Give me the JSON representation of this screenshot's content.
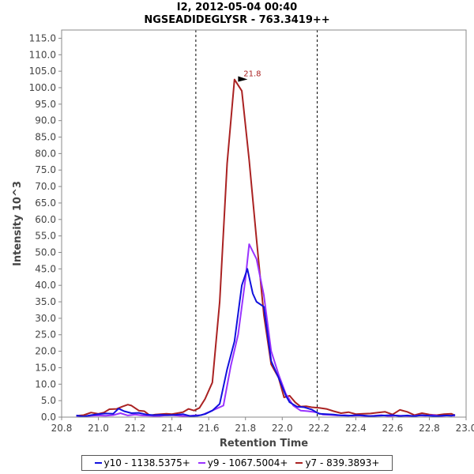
{
  "chart_data": {
    "type": "line",
    "title": "I2, 2012-05-04 00:40",
    "subtitle": "NGSEADIDEGLYSR - 763.3419++",
    "xlabel": "Retention Time",
    "ylabel": "Intensity 10^3",
    "xlim": [
      20.8,
      23.0
    ],
    "ylim": [
      0,
      117.5
    ],
    "x_ticks": [
      "20.8",
      "21.0",
      "21.2",
      "21.4",
      "21.6",
      "21.8",
      "22.0",
      "22.2",
      "22.4",
      "22.6",
      "22.8",
      "23.0"
    ],
    "y_ticks": [
      "0.0",
      "5.0",
      "10.0",
      "15.0",
      "20.0",
      "25.0",
      "30.0",
      "35.0",
      "40.0",
      "45.0",
      "50.0",
      "55.0",
      "60.0",
      "65.0",
      "70.0",
      "75.0",
      "80.0",
      "85.0",
      "90.0",
      "95.0",
      "100.0",
      "105.0",
      "110.0",
      "115.0"
    ],
    "vlines": [
      21.53,
      22.19
    ],
    "peak_annotation": {
      "label": "21.8",
      "x": 21.82,
      "y": 102.5
    },
    "legend_position": "bottom",
    "grid": false,
    "series": [
      {
        "name": "y10 - 1138.5375+",
        "color": "#1111dd",
        "x": [
          20.88,
          20.92,
          20.96,
          21.0,
          21.04,
          21.08,
          21.11,
          21.14,
          21.18,
          21.22,
          21.26,
          21.3,
          21.34,
          21.38,
          21.42,
          21.46,
          21.5,
          21.54,
          21.58,
          21.62,
          21.66,
          21.7,
          21.74,
          21.78,
          21.81,
          21.84,
          21.86,
          21.9,
          21.94,
          21.98,
          22.02,
          22.04,
          22.08,
          22.12,
          22.16,
          22.2,
          22.24,
          22.28,
          22.32,
          22.36,
          22.4,
          22.44,
          22.48,
          22.52,
          22.56,
          22.6,
          22.64,
          22.68,
          22.72,
          22.76,
          22.8,
          22.84,
          22.88,
          22.92,
          22.94
        ],
        "y": [
          0.5,
          0.2,
          0.6,
          0.9,
          1.1,
          1.0,
          2.6,
          1.8,
          1.2,
          1.3,
          0.8,
          0.6,
          0.7,
          0.6,
          0.7,
          0.9,
          0.3,
          0.4,
          0.9,
          2.0,
          4.0,
          14.5,
          23.0,
          40.0,
          45.0,
          37.5,
          35.0,
          33.5,
          17.0,
          12.0,
          6.5,
          4.5,
          3.2,
          3.0,
          2.3,
          1.0,
          0.9,
          0.8,
          0.5,
          0.4,
          0.6,
          0.5,
          0.3,
          0.4,
          0.5,
          0.6,
          0.3,
          0.5,
          0.3,
          0.6,
          0.4,
          0.3,
          0.5,
          0.4,
          0.7
        ]
      },
      {
        "name": "y9 - 1067.5004+",
        "color": "#9933ff",
        "x": [
          20.88,
          20.92,
          20.96,
          21.0,
          21.04,
          21.08,
          21.12,
          21.16,
          21.2,
          21.24,
          21.28,
          21.32,
          21.36,
          21.4,
          21.44,
          21.48,
          21.52,
          21.56,
          21.6,
          21.64,
          21.68,
          21.72,
          21.76,
          21.8,
          21.82,
          21.86,
          21.9,
          21.94,
          21.98,
          22.02,
          22.06,
          22.1,
          22.14,
          22.18,
          22.22,
          22.26,
          22.3,
          22.34,
          22.38,
          22.42,
          22.46,
          22.5,
          22.54,
          22.58,
          22.62,
          22.66,
          22.7,
          22.74,
          22.78,
          22.82,
          22.86,
          22.9,
          22.94
        ],
        "y": [
          0.3,
          0.2,
          0.4,
          0.5,
          0.4,
          0.6,
          1.2,
          0.5,
          0.8,
          0.5,
          0.4,
          0.3,
          0.5,
          0.6,
          0.4,
          0.3,
          0.5,
          0.6,
          1.5,
          2.5,
          3.5,
          15.5,
          25.0,
          42.0,
          52.5,
          48.0,
          37.0,
          20.0,
          13.0,
          7.0,
          3.5,
          2.0,
          1.8,
          1.5,
          0.8,
          0.7,
          0.5,
          0.6,
          0.4,
          0.5,
          0.3,
          0.4,
          0.6,
          0.3,
          0.5,
          0.4,
          0.3,
          0.5,
          0.4,
          0.6,
          0.3,
          0.5,
          0.4
        ]
      },
      {
        "name": "y7 - 839.3893+",
        "color": "#aa2222",
        "x": [
          20.88,
          20.92,
          20.96,
          21.0,
          21.03,
          21.06,
          21.1,
          21.13,
          21.16,
          21.18,
          21.22,
          21.25,
          21.28,
          21.31,
          21.34,
          21.37,
          21.4,
          21.43,
          21.46,
          21.49,
          21.52,
          21.55,
          21.58,
          21.62,
          21.66,
          21.7,
          21.74,
          21.78,
          21.82,
          21.86,
          21.9,
          21.94,
          21.98,
          22.01,
          22.04,
          22.07,
          22.1,
          22.13,
          22.16,
          22.2,
          22.24,
          22.28,
          22.32,
          22.36,
          22.4,
          22.44,
          22.48,
          22.52,
          22.56,
          22.6,
          22.64,
          22.68,
          22.72,
          22.76,
          22.8,
          22.84,
          22.88,
          22.92,
          22.94
        ],
        "y": [
          0.4,
          0.6,
          1.4,
          1.0,
          1.4,
          2.4,
          2.5,
          3.2,
          3.8,
          3.5,
          2.0,
          1.8,
          0.5,
          0.8,
          0.9,
          1.0,
          0.9,
          1.2,
          1.5,
          2.5,
          2.0,
          2.8,
          5.5,
          10.5,
          35.0,
          77.0,
          102.5,
          99.0,
          78.0,
          54.0,
          31.0,
          16.0,
          12.0,
          6.0,
          6.5,
          4.5,
          3.2,
          3.3,
          3.0,
          2.8,
          2.5,
          1.8,
          1.2,
          1.5,
          0.9,
          1.0,
          1.1,
          1.4,
          1.6,
          0.8,
          2.2,
          1.6,
          0.6,
          1.2,
          0.8,
          0.6,
          0.9,
          1.0,
          0.5
        ]
      }
    ]
  }
}
